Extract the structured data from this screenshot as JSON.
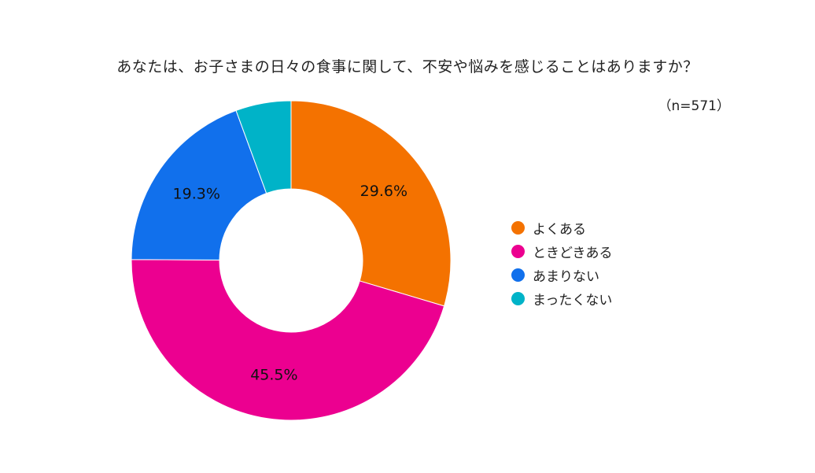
{
  "chart_data": {
    "type": "pie",
    "title": "あなたは、お子さまの日々の食事に関して、不安や悩みを感じることはありますか？",
    "subtitle": "（n=571）",
    "categories": [
      "よくある",
      "ときどきある",
      "あまりない",
      "まったくない"
    ],
    "values": [
      29.6,
      45.5,
      19.3,
      5.6
    ],
    "data_labels": [
      "29.6%",
      "45.5%",
      "19.3%",
      ""
    ],
    "colors": [
      "#F47200",
      "#EC0090",
      "#1170EC",
      "#00B3C8"
    ],
    "donut": true,
    "legend_position": "right"
  }
}
